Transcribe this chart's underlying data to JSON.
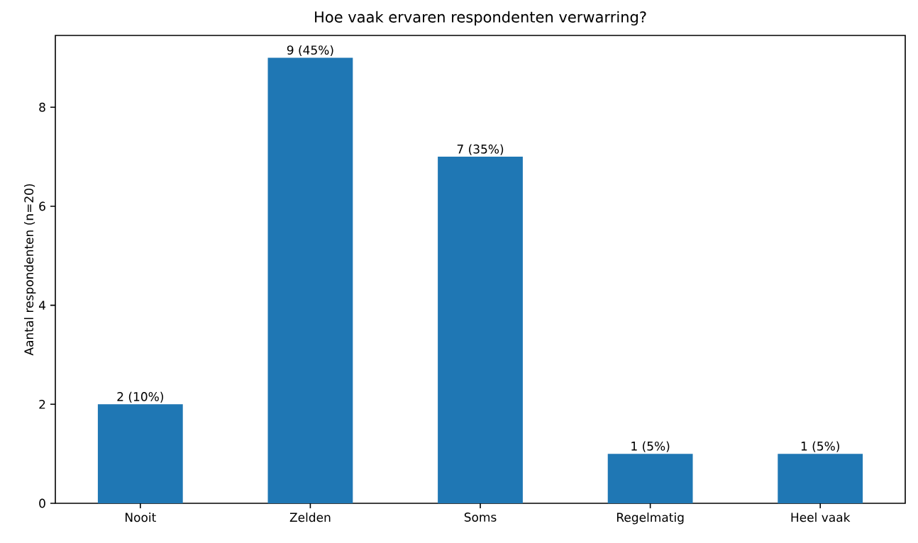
{
  "chart_data": {
    "type": "bar",
    "title": "Hoe vaak ervaren respondenten verwarring?",
    "ylabel": "Aantal respondenten (n=20)",
    "categories": [
      "Nooit",
      "Zelden",
      "Soms",
      "Regelmatig",
      "Heel vaak"
    ],
    "values": [
      2,
      9,
      7,
      1,
      1
    ],
    "value_labels": [
      "2 (10%)",
      "9 (45%)",
      "7 (35%)",
      "1 (5%)",
      "1 (5%)"
    ],
    "color": "#1f77b4",
    "ylim": [
      0,
      9.45
    ],
    "yticks": [
      0,
      2,
      4,
      6,
      8
    ],
    "grid": false
  }
}
